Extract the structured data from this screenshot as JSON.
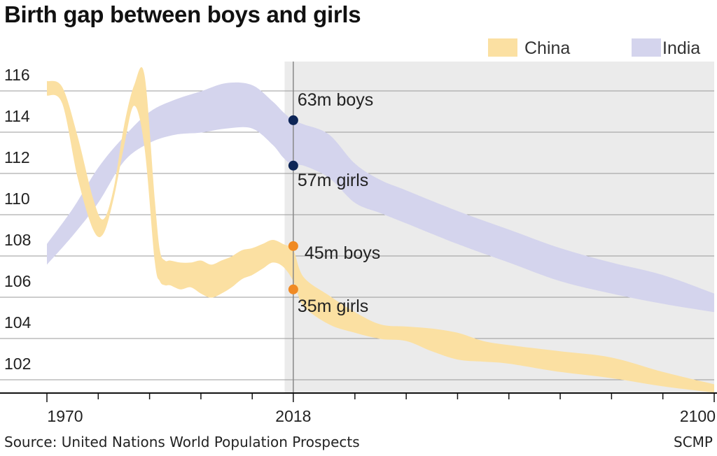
{
  "chart_data": {
    "type": "area",
    "title": "Birth gap between boys and girls",
    "xlabel": "",
    "ylabel": "",
    "xlim": [
      1970,
      2100
    ],
    "ylim": [
      100.5,
      117
    ],
    "yticks": [
      102,
      104,
      106,
      108,
      110,
      112,
      114,
      116
    ],
    "xticks_labeled": [
      1970,
      2018,
      2100
    ],
    "xticks_minor": [
      1980,
      1990,
      2000,
      2010,
      2030,
      2040,
      2050,
      2060,
      2070,
      2080,
      2090
    ],
    "projection_start": 2016.3,
    "grid": true,
    "legend": "top-right",
    "series": [
      {
        "name": "China",
        "color": "#fbe0a2",
        "x": [
          1970,
          1973,
          1976,
          1979,
          1981,
          1983,
          1985,
          1987,
          1989,
          1991,
          1992,
          1993,
          1994,
          1996,
          1998,
          2000,
          2002,
          2004,
          2006,
          2008,
          2010,
          2012,
          2014,
          2016,
          2018,
          2020,
          2025,
          2030,
          2035,
          2040,
          2045,
          2050,
          2055,
          2060,
          2070,
          2080,
          2090,
          2100
        ],
        "upper": [
          115.7,
          115.4,
          113.0,
          110.0,
          109.0,
          110.5,
          113.5,
          115.5,
          116.0,
          110.0,
          107.5,
          107.0,
          107.0,
          106.9,
          106.9,
          107.0,
          106.8,
          107.0,
          107.2,
          107.5,
          107.6,
          107.8,
          108.0,
          107.8,
          107.5,
          106.2,
          105.3,
          104.5,
          103.9,
          103.8,
          103.7,
          103.5,
          103.1,
          102.9,
          102.6,
          102.3,
          101.6,
          101.0
        ],
        "lower": [
          115.0,
          114.6,
          111.0,
          108.5,
          108.3,
          110.0,
          112.5,
          114.5,
          112.5,
          107.0,
          106.0,
          105.8,
          105.8,
          105.6,
          105.7,
          105.4,
          105.2,
          105.4,
          105.7,
          106.1,
          106.3,
          106.6,
          106.9,
          106.7,
          106.0,
          104.8,
          103.9,
          103.5,
          103.2,
          103.1,
          102.6,
          102.2,
          102.1,
          102.0,
          101.6,
          101.3,
          100.9,
          100.6
        ]
      },
      {
        "name": "India",
        "color": "#d4d4ed",
        "x": [
          1970,
          1975,
          1980,
          1985,
          1990,
          1995,
          2000,
          2005,
          2010,
          2014,
          2016,
          2018,
          2020,
          2025,
          2030,
          2035,
          2040,
          2050,
          2060,
          2070,
          2080,
          2090,
          2100
        ],
        "upper": [
          107.8,
          109.5,
          111.5,
          113.0,
          114.2,
          114.8,
          115.2,
          115.6,
          115.5,
          114.7,
          114.2,
          113.8,
          113.6,
          113.1,
          111.7,
          110.9,
          110.4,
          109.4,
          108.5,
          107.6,
          106.9,
          106.3,
          105.4
        ],
        "lower": [
          106.8,
          108.2,
          109.8,
          111.8,
          112.7,
          113.1,
          113.2,
          113.4,
          113.4,
          112.6,
          112.0,
          111.6,
          111.6,
          111.0,
          109.8,
          109.3,
          108.8,
          107.8,
          106.9,
          106.0,
          105.4,
          104.9,
          104.5
        ]
      }
    ],
    "markers": [
      {
        "year": 2018,
        "value": 113.8,
        "color": "#0d2557",
        "label": "63m boys"
      },
      {
        "year": 2018,
        "value": 111.6,
        "color": "#0d2557",
        "label": "57m girls"
      },
      {
        "year": 2018,
        "value": 107.7,
        "color": "#f08a24",
        "label": "45m boys"
      },
      {
        "year": 2018,
        "value": 105.6,
        "color": "#f08a24",
        "label": "35m girls"
      }
    ]
  },
  "footer": {
    "source": "Source: United Nations World Population Prospects",
    "credit": "SCMP"
  }
}
